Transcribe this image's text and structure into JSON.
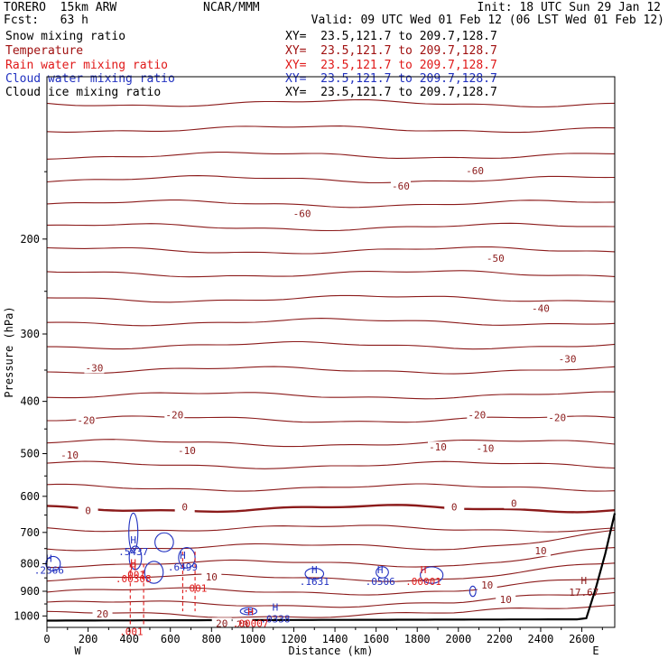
{
  "header": {
    "model": "TORERO  15km ARW",
    "center": "NCAR/MMM",
    "init": "Init: 18 UTC Sun 29 Jan 12",
    "fcst": "Fcst:   63 h",
    "valid": "Valid: 09 UTC Wed 01 Feb 12 (06 LST Wed 01 Feb 12)"
  },
  "fields": [
    {
      "name": "Snow mixing ratio",
      "xy": "XY=  23.5,121.7 to 209.7,128.7",
      "color": "#000000"
    },
    {
      "name": "Temperature",
      "xy": "XY=  23.5,121.7 to 209.7,128.7",
      "color": "#a01010"
    },
    {
      "name": "Rain water mixing ratio",
      "xy": "XY=  23.5,121.7 to 209.7,128.7",
      "color": "#e01818"
    },
    {
      "name": "Cloud water mixing ratio",
      "xy": "XY=  23.5,121.7 to 209.7,128.7",
      "color": "#2030c0"
    },
    {
      "name": "Cloud ice mixing ratio",
      "xy": "XY=  23.5,121.7 to 209.7,128.7",
      "color": "#000000"
    }
  ],
  "axes": {
    "xlabel": "Distance (km)",
    "ylabel": "Pressure (hPa)",
    "x_ticks": [
      "0",
      "200",
      "400",
      "600",
      "800",
      "1000",
      "1200",
      "1400",
      "1600",
      "1800",
      "2000",
      "2200",
      "2400",
      "2600"
    ],
    "y_ticks": [
      "200",
      "300",
      "400",
      "500",
      "600",
      "700",
      "800",
      "900",
      "1000"
    ],
    "x_end_left": "W",
    "x_end_right": "E"
  },
  "chart_data": {
    "type": "line",
    "title": "",
    "xlabel": "Distance (km)",
    "ylabel": "Pressure (hPa)",
    "xlim": [
      0,
      2760
    ],
    "ylim": [
      1050,
      100
    ],
    "y_scale": "log",
    "grid": false,
    "temperature_contours": {
      "color": "#8b1a1a",
      "levels": [
        -60,
        -50,
        -40,
        -30,
        -20,
        -10,
        0,
        10,
        20
      ],
      "labels": [
        {
          "text": "-60",
          "x": 1240,
          "p": 180
        },
        {
          "text": "-60",
          "x": 1720,
          "p": 160
        },
        {
          "text": "-60",
          "x": 2080,
          "p": 150
        },
        {
          "text": "-50",
          "x": 2180,
          "p": 218
        },
        {
          "text": "-40",
          "x": 2400,
          "p": 270
        },
        {
          "text": "-30",
          "x": 230,
          "p": 348
        },
        {
          "text": "-30",
          "x": 2530,
          "p": 335
        },
        {
          "text": "-20",
          "x": 190,
          "p": 435
        },
        {
          "text": "-20",
          "x": 620,
          "p": 425
        },
        {
          "text": "-20",
          "x": 2090,
          "p": 425
        },
        {
          "text": "-20",
          "x": 2480,
          "p": 430
        },
        {
          "text": "-10",
          "x": 110,
          "p": 505
        },
        {
          "text": "-10",
          "x": 680,
          "p": 495
        },
        {
          "text": "-10",
          "x": 1900,
          "p": 488
        },
        {
          "text": "-10",
          "x": 2130,
          "p": 490
        },
        {
          "text": "0",
          "x": 200,
          "p": 640
        },
        {
          "text": "0",
          "x": 670,
          "p": 630
        },
        {
          "text": "0",
          "x": 1980,
          "p": 630
        },
        {
          "text": "0",
          "x": 2270,
          "p": 620
        },
        {
          "text": "10",
          "x": 800,
          "p": 850
        },
        {
          "text": "10",
          "x": 2400,
          "p": 760
        },
        {
          "text": "10",
          "x": 2140,
          "p": 880
        },
        {
          "text": "10",
          "x": 2230,
          "p": 935
        },
        {
          "text": "20",
          "x": 270,
          "p": 995
        },
        {
          "text": "20",
          "x": 850,
          "p": 1035
        },
        {
          "text": "20",
          "x": 950,
          "p": 1040
        }
      ]
    },
    "annotations": [
      {
        "text": "H",
        "value": ".2366",
        "x": 10,
        "p": 800,
        "color": "#2030c0"
      },
      {
        "text": "H",
        "value": ".5437",
        "x": 420,
        "p": 740,
        "color": "#2030c0"
      },
      {
        "text": "H",
        "value": ".001",
        "x": 420,
        "p": 815,
        "color": "#e01818"
      },
      {
        "text": "H",
        "value": ".00308",
        "x": 420,
        "p": 830,
        "color": "#e01818"
      },
      {
        "text": "H",
        "value": ".6499",
        "x": 660,
        "p": 790,
        "color": "#2030c0"
      },
      {
        "text": "",
        "value": ".001",
        "x": 720,
        "p": 865,
        "color": "#e01818"
      },
      {
        "text": "H",
        "value": ".1631",
        "x": 1300,
        "p": 840,
        "color": "#2030c0"
      },
      {
        "text": "H",
        "value": ".0506",
        "x": 1620,
        "p": 840,
        "color": "#2030c0"
      },
      {
        "text": "H",
        "value": ".00001",
        "x": 1830,
        "p": 840,
        "color": "#e01818"
      },
      {
        "text": "H",
        "value": "17.67",
        "x": 2610,
        "p": 880,
        "color": "#8b1a1a"
      },
      {
        "text": "H",
        "value": ".0338",
        "x": 1110,
        "p": 985,
        "color": "#2030c0"
      },
      {
        "text": "H",
        "value": ".00007",
        "x": 990,
        "p": 1005,
        "color": "#e01818"
      },
      {
        "text": "",
        "value": ".001",
        "x": 410,
        "p": 1040,
        "color": "#e01818"
      }
    ]
  }
}
